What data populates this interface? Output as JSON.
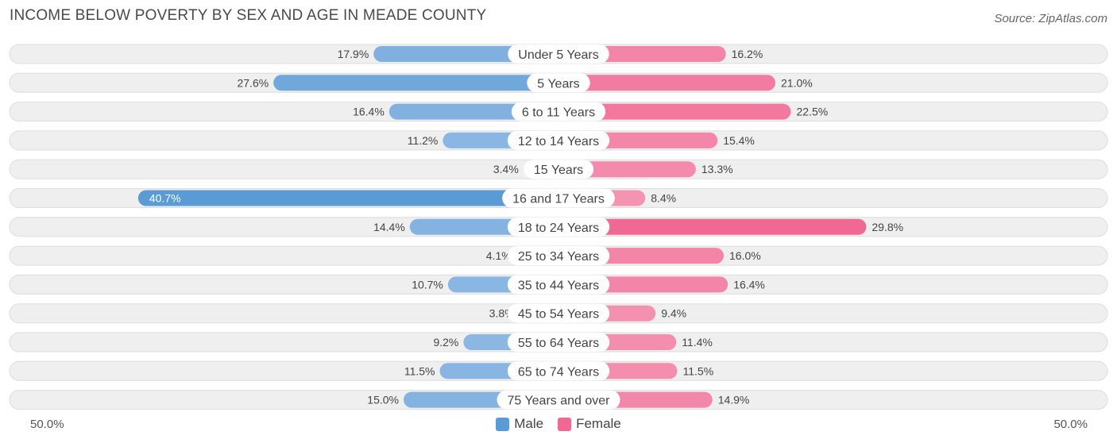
{
  "header": {
    "title": "INCOME BELOW POVERTY BY SEX AND AGE IN MEADE COUNTY",
    "source": "Source: ZipAtlas.com"
  },
  "axis": {
    "left_label": "50.0%",
    "right_label": "50.0%"
  },
  "legend": {
    "male_label": "Male",
    "female_label": "Female"
  },
  "colors": {
    "male_strong": "#5b9bd5",
    "male_light": "#a9c8ec",
    "female_strong": "#f06894",
    "female_light": "#f7aac2",
    "track": "#efefef",
    "track_border": "#dddddd"
  },
  "chart_data": {
    "type": "bar",
    "orientation": "horizontal-diverging",
    "title": "INCOME BELOW POVERTY BY SEX AND AGE IN MEADE COUNTY",
    "xlim": [
      -50,
      50
    ],
    "categories": [
      "Under 5 Years",
      "5 Years",
      "6 to 11 Years",
      "12 to 14 Years",
      "15 Years",
      "16 and 17 Years",
      "18 to 24 Years",
      "25 to 34 Years",
      "35 to 44 Years",
      "45 to 54 Years",
      "55 to 64 Years",
      "65 to 74 Years",
      "75 Years and over"
    ],
    "series": [
      {
        "name": "Male",
        "values": [
          17.9,
          27.6,
          16.4,
          11.2,
          3.4,
          40.7,
          14.4,
          4.1,
          10.7,
          3.8,
          9.2,
          11.5,
          15.0
        ],
        "labels": [
          "17.9%",
          "27.6%",
          "16.4%",
          "11.2%",
          "3.4%",
          "40.7%",
          "14.4%",
          "4.1%",
          "10.7%",
          "3.8%",
          "9.2%",
          "11.5%",
          "15.0%"
        ]
      },
      {
        "name": "Female",
        "values": [
          16.2,
          21.0,
          22.5,
          15.4,
          13.3,
          8.4,
          29.8,
          16.0,
          16.4,
          9.4,
          11.4,
          11.5,
          14.9
        ],
        "labels": [
          "16.2%",
          "21.0%",
          "22.5%",
          "15.4%",
          "13.3%",
          "8.4%",
          "29.8%",
          "16.0%",
          "16.4%",
          "9.4%",
          "11.4%",
          "11.5%",
          "14.9%"
        ]
      }
    ]
  }
}
